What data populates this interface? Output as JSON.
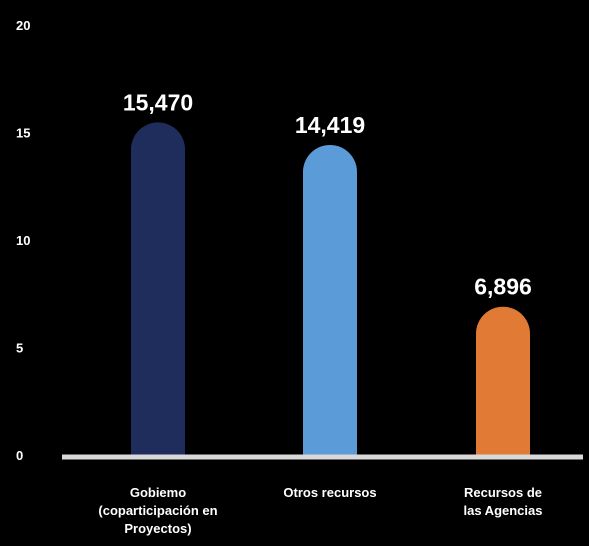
{
  "chart_data": {
    "type": "bar",
    "categories": [
      "Gobiemo (coparticipación en Proyectos)",
      "Otros recursos",
      "Recursos de las Agencias"
    ],
    "category_lines": [
      [
        "Gobiemo",
        "(coparticipación en",
        "Proyectos)"
      ],
      [
        "Otros recursos"
      ],
      [
        "Recursos de",
        "las Agencias"
      ]
    ],
    "values": [
      15.47,
      14.419,
      6.896
    ],
    "data_labels": [
      "15,470",
      "14,419",
      "6,896"
    ],
    "colors": [
      "#1f2d5c",
      "#5b9bd8",
      "#e07a35"
    ],
    "yticks": [
      0,
      5,
      10,
      15,
      20
    ],
    "ylim": [
      0,
      20
    ],
    "grid": false,
    "legend": "none",
    "title": "",
    "xlabel": "",
    "ylabel": ""
  },
  "style": {
    "background": "#000000",
    "text_color": "#ffffff",
    "axis_color": "#d9d9d9"
  }
}
